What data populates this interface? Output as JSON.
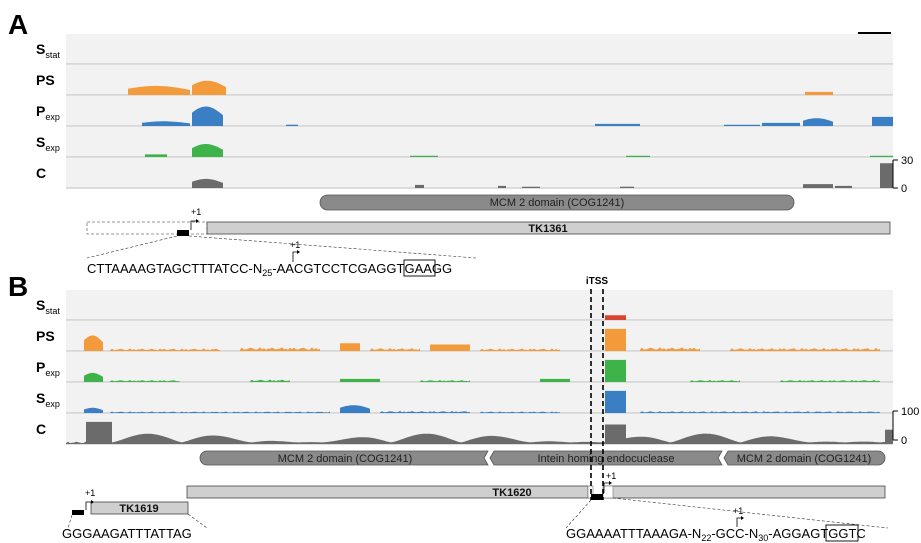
{
  "panel_a": {
    "letter": "A",
    "tracks": [
      {
        "key": "sstat",
        "base": "S",
        "sub": "stat",
        "color": "#cccccc"
      },
      {
        "key": "ps",
        "base": "PS",
        "sub": "",
        "color": "#f39a3a"
      },
      {
        "key": "pexp",
        "base": "P",
        "sub": "exp",
        "color": "#3a7fc4"
      },
      {
        "key": "sexp",
        "base": "S",
        "sub": "exp",
        "color": "#3db34a"
      },
      {
        "key": "c",
        "base": "C",
        "sub": "",
        "color": "#6b6b6b"
      }
    ],
    "axis_max": "30",
    "axis_min": "0",
    "domains": [
      {
        "label": "MCM 2 domain (COG1241)"
      }
    ],
    "gene_label": "TK1361",
    "tss_label": "+1",
    "seq_main": "CTTAAAAGTAGCTTTATCC-N",
    "seq_sub": "25",
    "seq_rest": "-AACGTCCTCGAG",
    "seq_box": "GTG",
    "seq_end": "AAGG",
    "seq_tss": "+1"
  },
  "panel_b": {
    "letter": "B",
    "tracks": [
      {
        "key": "sstat",
        "base": "S",
        "sub": "stat",
        "color": "#d9462f"
      },
      {
        "key": "ps",
        "base": "PS",
        "sub": "",
        "color": "#f39a3a"
      },
      {
        "key": "pexp",
        "base": "P",
        "sub": "exp",
        "color": "#3db34a"
      },
      {
        "key": "sexp",
        "base": "S",
        "sub": "exp",
        "color": "#3a7fc4"
      },
      {
        "key": "c",
        "base": "C",
        "sub": "",
        "color": "#6b6b6b"
      }
    ],
    "axis_max": "100",
    "axis_min": "0",
    "itss_label": "iTSS",
    "domains": [
      {
        "label": "MCM 2 domain (COG1241)"
      },
      {
        "label": "Intein homing endocuclease"
      },
      {
        "label": "MCM 2 domain (COG1241)"
      }
    ],
    "gene1_label": "TK1619",
    "gene2_label": "TK1620",
    "tss1_label": "+1",
    "tss2_label": "+1",
    "seq_left": "GGGAAGATTTATTAG",
    "seq_right_a": "GGAAAATTTAAAGA-N",
    "seq_right_sub1": "22",
    "seq_right_b": "-GCC-N",
    "seq_right_sub2": "30",
    "seq_right_c": "-AGGA",
    "seq_right_box": "GTG",
    "seq_right_end": "GTC",
    "seq_right_tss": "+1"
  }
}
